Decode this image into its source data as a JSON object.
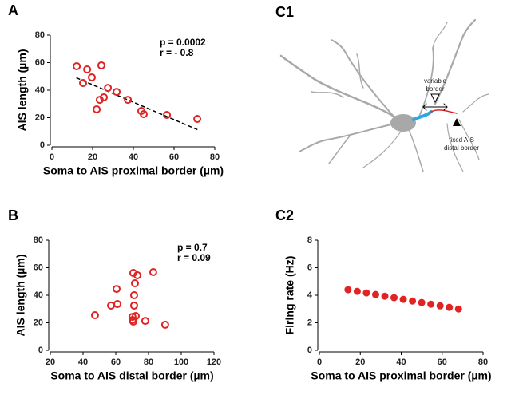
{
  "chart_data": [
    {
      "type": "scatter",
      "panel_label": "A",
      "xlabel": "Soma to AIS proximal border (µm)",
      "ylabel": "AIS length (µm)",
      "xlim": [
        0,
        80
      ],
      "xticks": [
        0,
        20,
        40,
        60,
        80
      ],
      "ylim": [
        0,
        80
      ],
      "yticks": [
        0,
        20,
        40,
        60,
        80
      ],
      "color": "#e02424",
      "marker_fill": false,
      "x": [
        12.2,
        15.3,
        17.3,
        19.6,
        22,
        23.5,
        24.3,
        25.5,
        27.5,
        31.8,
        37.3,
        43.9,
        45.1,
        56.5,
        71.4
      ],
      "y": [
        57.4,
        45.2,
        55.1,
        49.3,
        26.1,
        33,
        58,
        34.8,
        41.7,
        38.8,
        33,
        24.9,
        22.6,
        22,
        19.1
      ],
      "trendline": {
        "x": [
          12,
          72
        ],
        "y": [
          49,
          11
        ]
      },
      "annotations": [
        "p = 0.0002",
        "r = - 0.8"
      ]
    },
    {
      "type": "scatter",
      "panel_label": "B",
      "xlabel": "Soma to AIS distal border (µm)",
      "ylabel": "AIS length (µm)",
      "xlim": [
        20,
        120
      ],
      "xticks": [
        20,
        40,
        60,
        80,
        100,
        120
      ],
      "ylim": [
        0,
        80
      ],
      "yticks": [
        0,
        20,
        40,
        60,
        80
      ],
      "color": "#e02424",
      "marker_fill": false,
      "x": [
        47.3,
        57.1,
        60.5,
        61,
        70.2,
        70.2,
        70.7,
        72.2,
        71.2,
        71.2,
        71.7,
        70.7,
        73.2,
        78,
        82.9,
        90.2
      ],
      "y": [
        25.5,
        32.5,
        44.6,
        33.6,
        24.3,
        22,
        20.9,
        24.9,
        32.5,
        40,
        48.7,
        56.2,
        54.5,
        21.4,
        56.8,
        18.6
      ],
      "annotations": [
        "p = 0.7",
        "r = 0.09"
      ]
    },
    {
      "type": "scatter",
      "panel_label": "C2",
      "xlabel": "Soma to AIS proximal border (µm)",
      "ylabel": "Firing rate (Hz)",
      "xlim": [
        0,
        80
      ],
      "xticks": [
        0,
        20,
        40,
        60,
        80
      ],
      "ylim": [
        0,
        8
      ],
      "yticks": [
        0,
        2,
        4,
        6,
        8
      ],
      "color": "#e02424",
      "marker_fill": true,
      "x": [
        14,
        18.5,
        23,
        27.5,
        32,
        36.5,
        41,
        45.5,
        50,
        54.5,
        59,
        63.5,
        68
      ],
      "y": [
        4.4,
        4.28,
        4.17,
        4.05,
        3.93,
        3.82,
        3.7,
        3.58,
        3.47,
        3.35,
        3.23,
        3.12,
        3.0
      ]
    }
  ],
  "diagram": {
    "panel_label": "C1",
    "variable_border": [
      "variable",
      "border"
    ],
    "fixed_border": [
      "fixed AIS",
      "distal border"
    ]
  }
}
